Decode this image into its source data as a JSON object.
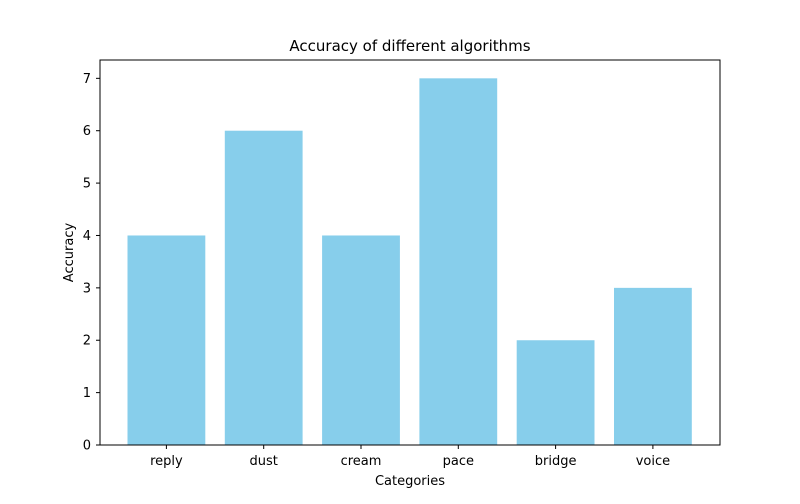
{
  "chart_data": {
    "type": "bar",
    "title": "Accuracy of different algorithms",
    "xlabel": "Categories",
    "ylabel": "Accuracy",
    "categories": [
      "reply",
      "dust",
      "cream",
      "pace",
      "bridge",
      "voice"
    ],
    "values": [
      4,
      6,
      4,
      7,
      2,
      3
    ],
    "yticks": [
      "0",
      "1",
      "2",
      "3",
      "4",
      "5",
      "6",
      "7"
    ],
    "ylim": [
      0,
      7.35
    ],
    "grid": false,
    "bar_color": "#87ceeb"
  }
}
